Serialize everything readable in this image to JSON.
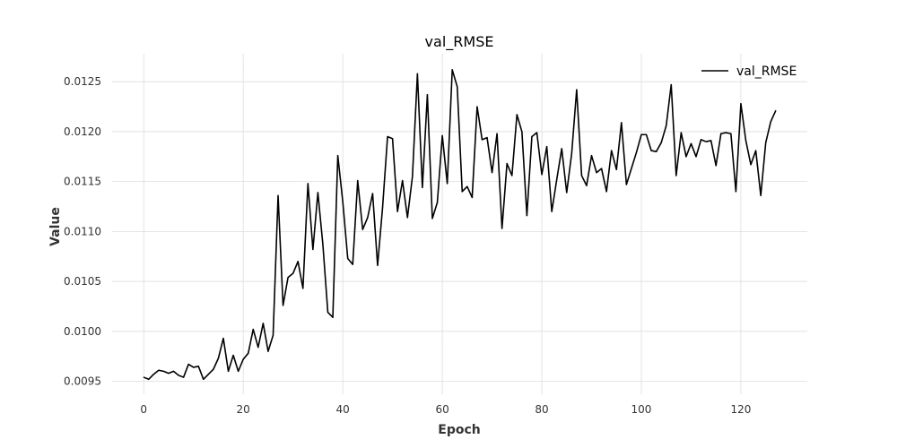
{
  "chart_data": {
    "type": "line",
    "title": "val_RMSE",
    "xlabel": "Epoch",
    "ylabel": "Value",
    "xlim": [
      -6.35,
      133.35
    ],
    "ylim": [
      0.00937,
      0.01278
    ],
    "x_ticks": [
      0,
      20,
      40,
      60,
      80,
      100,
      120
    ],
    "y_ticks": [
      0.0095,
      0.01,
      0.0105,
      0.011,
      0.0115,
      0.012,
      0.0125
    ],
    "x_tick_labels": [
      "0",
      "20",
      "40",
      "60",
      "80",
      "100",
      "120"
    ],
    "y_tick_labels": [
      "0.0095",
      "0.0100",
      "0.0105",
      "0.0110",
      "0.0115",
      "0.0120",
      "0.0125"
    ],
    "grid": true,
    "legend_position": "top-right",
    "line_color": "#000000",
    "series": [
      {
        "name": "val_RMSE",
        "x": [
          0,
          1,
          2,
          3,
          4,
          5,
          6,
          7,
          8,
          9,
          10,
          11,
          12,
          13,
          14,
          15,
          16,
          17,
          18,
          19,
          20,
          21,
          22,
          23,
          24,
          25,
          26,
          27,
          28,
          29,
          30,
          31,
          32,
          33,
          34,
          35,
          36,
          37,
          38,
          39,
          40,
          41,
          42,
          43,
          44,
          45,
          46,
          47,
          48,
          49,
          50,
          51,
          52,
          53,
          54,
          55,
          56,
          57,
          58,
          59,
          60,
          61,
          62,
          63,
          64,
          65,
          66,
          67,
          68,
          69,
          70,
          71,
          72,
          73,
          74,
          75,
          76,
          77,
          78,
          79,
          80,
          81,
          82,
          83,
          84,
          85,
          86,
          87,
          88,
          89,
          90,
          91,
          92,
          93,
          94,
          95,
          96,
          97,
          98,
          99,
          100,
          101,
          102,
          103,
          104,
          105,
          106,
          107,
          108,
          109,
          110,
          111,
          112,
          113,
          114,
          115,
          116,
          117,
          118,
          119,
          120,
          121,
          122,
          123,
          124,
          125,
          126,
          127
        ],
        "y": [
          0.00954,
          0.00952,
          0.00957,
          0.00961,
          0.0096,
          0.00958,
          0.0096,
          0.00956,
          0.00954,
          0.00967,
          0.00964,
          0.00965,
          0.00952,
          0.00957,
          0.00962,
          0.00973,
          0.00993,
          0.0096,
          0.00976,
          0.0096,
          0.00972,
          0.00978,
          0.01002,
          0.00984,
          0.01008,
          0.0098,
          0.00996,
          0.01136,
          0.01026,
          0.01054,
          0.01058,
          0.0107,
          0.01043,
          0.01148,
          0.01082,
          0.01139,
          0.01087,
          0.01019,
          0.01014,
          0.01176,
          0.0113,
          0.01073,
          0.01067,
          0.01151,
          0.01102,
          0.01114,
          0.01138,
          0.01066,
          0.01124,
          0.01195,
          0.01193,
          0.0112,
          0.01151,
          0.01114,
          0.01155,
          0.01258,
          0.01144,
          0.01237,
          0.01113,
          0.01129,
          0.01196,
          0.01148,
          0.01262,
          0.01245,
          0.0114,
          0.01145,
          0.01134,
          0.01225,
          0.01192,
          0.01194,
          0.01159,
          0.01198,
          0.01103,
          0.01168,
          0.01156,
          0.01217,
          0.012,
          0.01116,
          0.01195,
          0.01199,
          0.01157,
          0.01185,
          0.0112,
          0.01152,
          0.01183,
          0.01139,
          0.01178,
          0.01242,
          0.01156,
          0.01146,
          0.01176,
          0.01159,
          0.01163,
          0.0114,
          0.01181,
          0.01162,
          0.01209,
          0.01147,
          0.01163,
          0.01179,
          0.01197,
          0.01197,
          0.01181,
          0.0118,
          0.01189,
          0.01206,
          0.01247,
          0.01156,
          0.01199,
          0.01175,
          0.01188,
          0.01175,
          0.01192,
          0.0119,
          0.01191,
          0.01166,
          0.01198,
          0.01199,
          0.01198,
          0.0114,
          0.01228,
          0.01191,
          0.01167,
          0.01181,
          0.01136,
          0.01189,
          0.0121,
          0.01221
        ]
      }
    ]
  }
}
